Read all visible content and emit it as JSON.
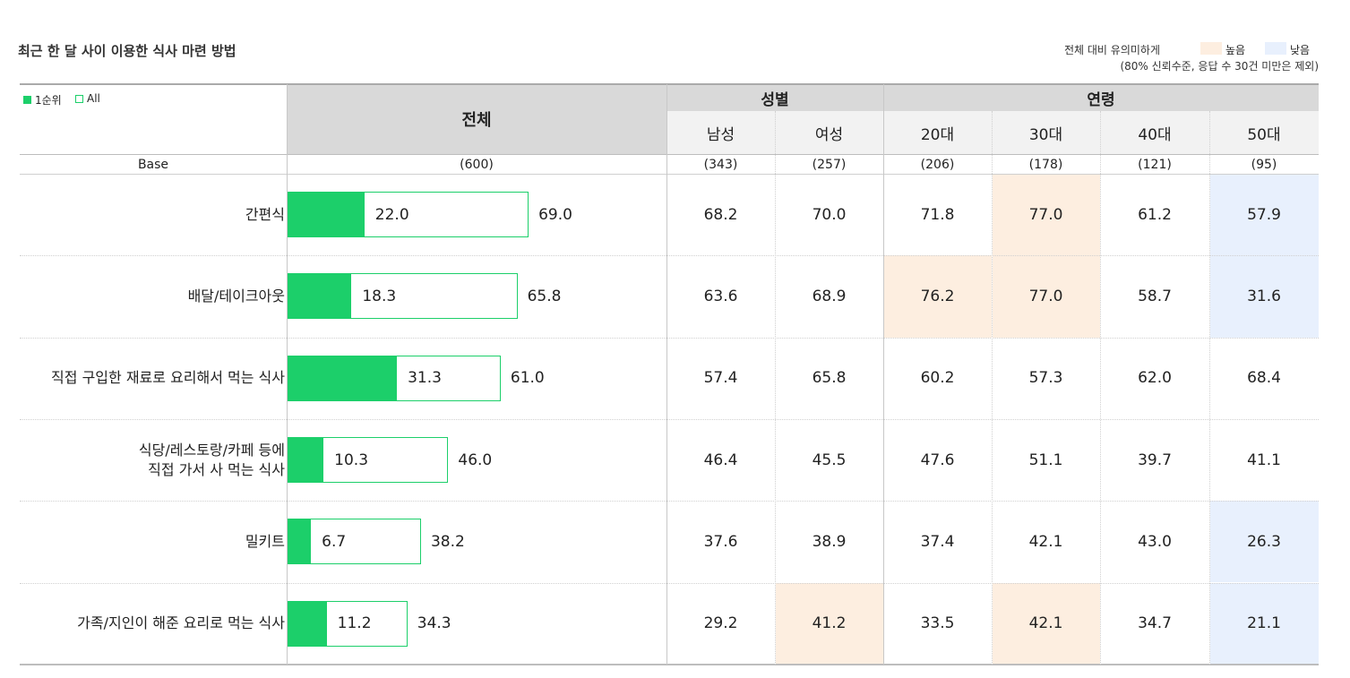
{
  "title": "최근 한 달 사이 이용한 식사 마련 방법",
  "legend": {
    "note": "전체 대비 유의미하게",
    "high": "높음",
    "low": "낮음",
    "footnote": "(80% 신뢰수준, 응답 수 30건 미만은 제외)",
    "high_color": "#fdeee0",
    "low_color": "#e8f0fd"
  },
  "series_legend": {
    "first": "1순위",
    "all": "All",
    "color": "#1ccf6a"
  },
  "header": {
    "total": "전체",
    "gender": "성별",
    "age": "연령",
    "columns": [
      "남성",
      "여성",
      "20대",
      "30대",
      "40대",
      "50대"
    ]
  },
  "base": {
    "label": "Base",
    "total": "(600)",
    "columns": [
      "(343)",
      "(257)",
      "(206)",
      "(178)",
      "(121)",
      "(95)"
    ]
  },
  "chart_data": {
    "type": "bar",
    "categories": [
      "간편식",
      "배달/테이크아웃",
      "직접 구입한 재료로 요리해서 먹는 식사",
      "식당/레스토랑/카페 등에\n직접 가서 사 먹는 식사",
      "밀키트",
      "가족/지인이 해준 요리로 먹는 식사"
    ],
    "series": [
      {
        "name": "1순위",
        "values": [
          22.0,
          18.3,
          31.3,
          10.3,
          6.7,
          11.2
        ]
      },
      {
        "name": "All",
        "values": [
          69.0,
          65.8,
          61.0,
          46.0,
          38.2,
          34.3
        ]
      }
    ],
    "xlim": [
      0,
      100
    ]
  },
  "table": {
    "rows": [
      {
        "values": [
          "68.2",
          "70.0",
          "71.8",
          "77.0",
          "61.2",
          "57.9"
        ],
        "sig": [
          "",
          "",
          "",
          "high",
          "",
          "low"
        ]
      },
      {
        "values": [
          "63.6",
          "68.9",
          "76.2",
          "77.0",
          "58.7",
          "31.6"
        ],
        "sig": [
          "",
          "",
          "high",
          "high",
          "",
          "low"
        ]
      },
      {
        "values": [
          "57.4",
          "65.8",
          "60.2",
          "57.3",
          "62.0",
          "68.4"
        ],
        "sig": [
          "",
          "",
          "",
          "",
          "",
          ""
        ]
      },
      {
        "values": [
          "46.4",
          "45.5",
          "47.6",
          "51.1",
          "39.7",
          "41.1"
        ],
        "sig": [
          "",
          "",
          "",
          "",
          "",
          ""
        ]
      },
      {
        "values": [
          "37.6",
          "38.9",
          "37.4",
          "42.1",
          "43.0",
          "26.3"
        ],
        "sig": [
          "",
          "",
          "",
          "",
          "",
          "low"
        ]
      },
      {
        "values": [
          "29.2",
          "41.2",
          "33.5",
          "42.1",
          "34.7",
          "21.1"
        ],
        "sig": [
          "",
          "high",
          "",
          "high",
          "",
          "low"
        ]
      }
    ]
  }
}
